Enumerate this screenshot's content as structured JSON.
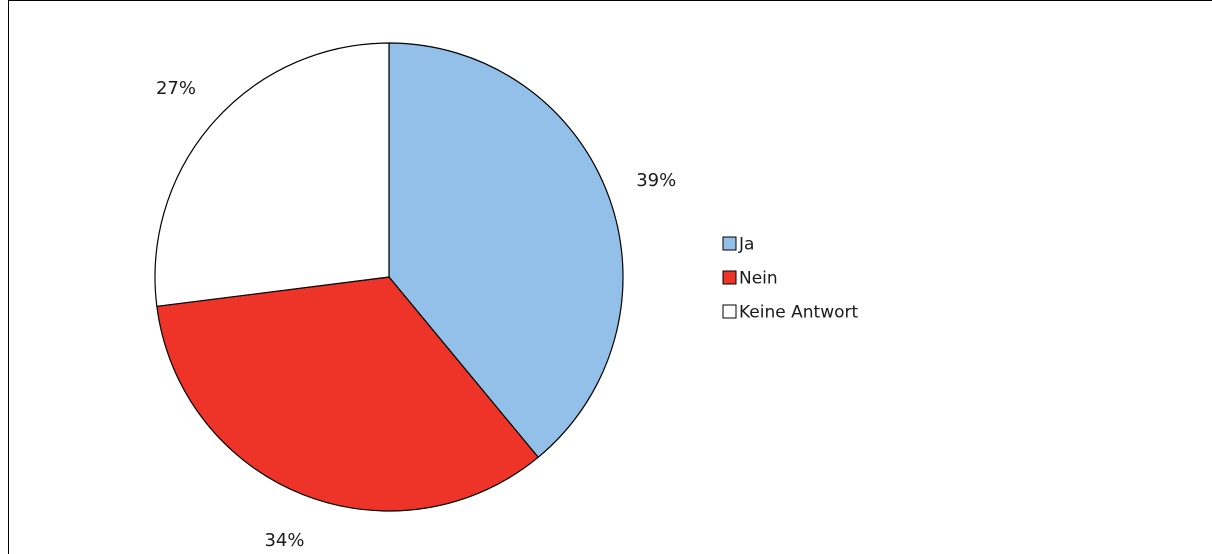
{
  "chart_data": {
    "type": "pie",
    "title": "",
    "slices": [
      {
        "label": "Ja",
        "value": 39,
        "display": "39%",
        "color": "#92c0e8"
      },
      {
        "label": "Nein",
        "value": 34,
        "display": "34%",
        "color": "#ee3429"
      },
      {
        "label": "Keine Antwort",
        "value": 27,
        "display": "27%",
        "color": "#ffffff"
      }
    ],
    "start_angle": "12 o'clock",
    "direction": "clockwise",
    "stroke_color": "#000000",
    "legend": {
      "position": "right",
      "items": [
        "Ja",
        "Nein",
        "Keine Antwort"
      ]
    }
  }
}
